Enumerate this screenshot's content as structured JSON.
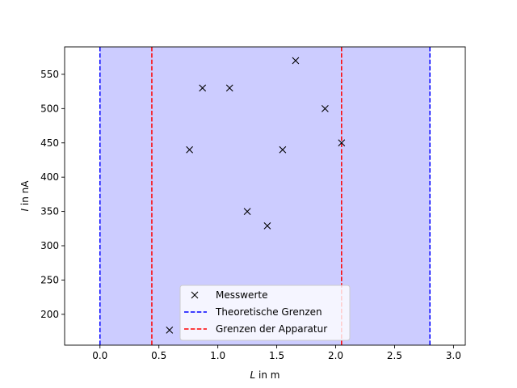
{
  "chart_data": {
    "type": "scatter",
    "title": "",
    "xlabel": {
      "var": "L",
      "unit": " in m"
    },
    "ylabel": {
      "var": "I",
      "unit": " in nA"
    },
    "xlim": [
      -0.3,
      3.1
    ],
    "ylim": [
      155,
      590
    ],
    "xticks": [
      0.0,
      0.5,
      1.0,
      1.5,
      2.0,
      2.5,
      3.0
    ],
    "xtick_labels": [
      "0.0",
      "0.5",
      "1.0",
      "1.5",
      "2.0",
      "2.5",
      "3.0"
    ],
    "yticks": [
      200,
      250,
      300,
      350,
      400,
      450,
      500,
      550
    ],
    "ytick_labels": [
      "200",
      "250",
      "300",
      "350",
      "400",
      "450",
      "500",
      "550"
    ],
    "grid": false,
    "legend_position": "bottom-center",
    "series": [
      {
        "name": "Messwerte",
        "marker": "x",
        "color": "#000000",
        "points": [
          [
            0.59,
            177
          ],
          [
            0.76,
            440
          ],
          [
            0.87,
            530
          ],
          [
            1.1,
            530
          ],
          [
            1.25,
            350
          ],
          [
            1.42,
            329
          ],
          [
            1.55,
            440
          ],
          [
            1.66,
            570
          ],
          [
            1.91,
            500
          ],
          [
            2.05,
            450
          ]
        ]
      }
    ],
    "shaded_region": {
      "x": [
        0.0,
        2.8
      ],
      "color": "#ccccff"
    },
    "vlines": [
      {
        "name": "Theoretische Grenzen",
        "color": "#0000ff",
        "style": "dashed",
        "x": [
          0.0,
          2.8
        ]
      },
      {
        "name": "Grenzen der Apparatur",
        "color": "#ff0000",
        "style": "dashed",
        "x": [
          0.44,
          2.05
        ]
      }
    ],
    "legend": [
      "Messwerte",
      "Theoretische Grenzen",
      "Grenzen der Apparatur"
    ]
  }
}
